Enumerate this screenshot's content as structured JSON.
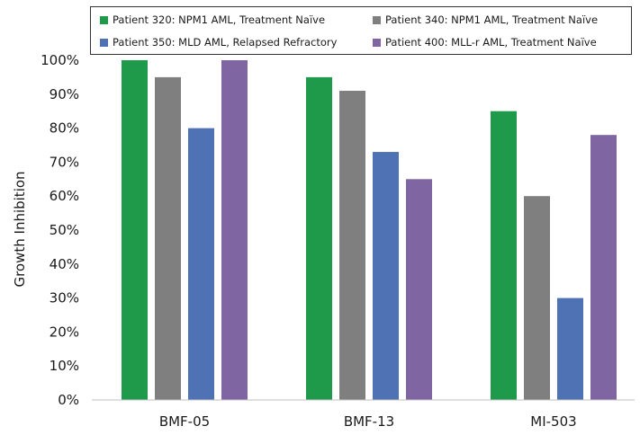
{
  "chart_data": {
    "type": "bar",
    "title": "",
    "xlabel": "",
    "ylabel": "Growth Inhibition",
    "ylim": [
      0,
      100
    ],
    "yticks": [
      "0%",
      "10%",
      "20%",
      "30%",
      "40%",
      "50%",
      "60%",
      "70%",
      "80%",
      "90%",
      "100%"
    ],
    "categories": [
      "BMF-05",
      "BMF-13",
      "MI-503"
    ],
    "grid": false,
    "legend_position": "top",
    "series": [
      {
        "name": "Patient 320: NPM1 AML, Treatment Naïve",
        "color": "#1f9a4b",
        "values": [
          100,
          95,
          85
        ]
      },
      {
        "name": "Patient 340: NPM1 AML, Treatment Naïve",
        "color": "#7f7f7f",
        "values": [
          95,
          91,
          60
        ]
      },
      {
        "name": "Patient 350: MLD AML, Relapsed Refractory",
        "color": "#4f72b5",
        "values": [
          80,
          73,
          30
        ]
      },
      {
        "name": "Patient 400: MLL-r AML, Treatment Naïve",
        "color": "#8065a3",
        "values": [
          100,
          65,
          78
        ]
      }
    ]
  }
}
